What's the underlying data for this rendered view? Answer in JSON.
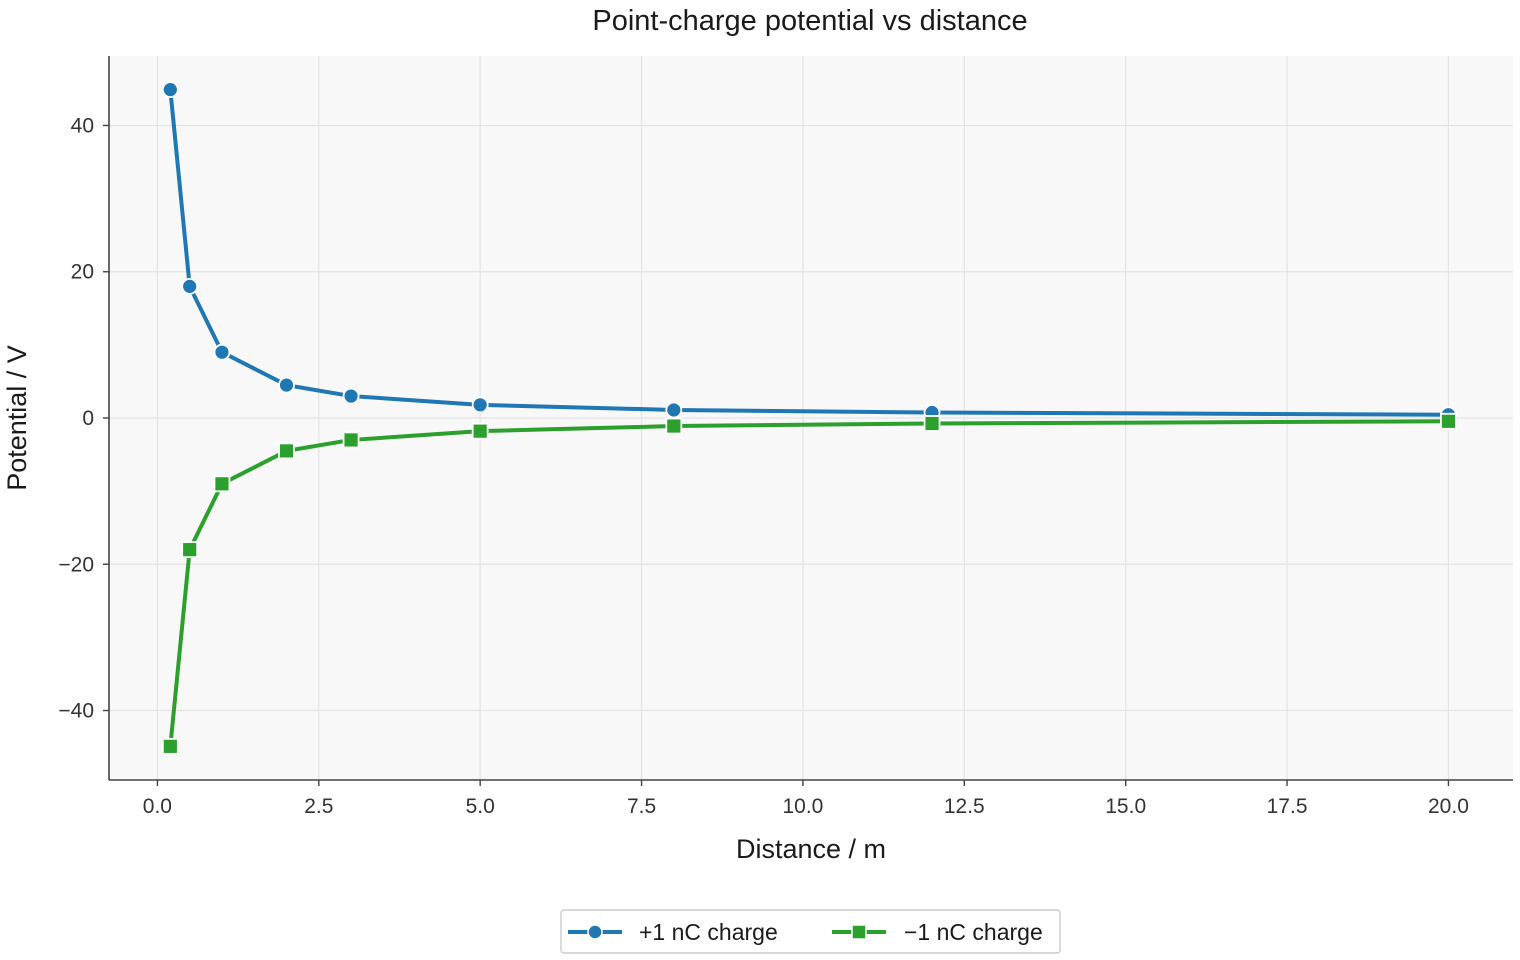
{
  "chart_data": {
    "type": "line",
    "title": "Point-charge potential vs distance",
    "xlabel": "Distance / m",
    "ylabel": "Potential / V",
    "xlim": [
      -0.75,
      21.0
    ],
    "ylim": [
      -49.5,
      49.5
    ],
    "x_ticks": [
      0.0,
      2.5,
      5.0,
      7.5,
      10.0,
      12.5,
      15.0,
      17.5,
      20.0
    ],
    "x_tick_labels": [
      "0.0",
      "2.5",
      "5.0",
      "7.5",
      "10.0",
      "12.5",
      "15.0",
      "17.5",
      "20.0"
    ],
    "y_ticks": [
      -40,
      -20,
      0,
      20,
      40
    ],
    "y_tick_labels": [
      "−40",
      "−20",
      "0",
      "20",
      "40"
    ],
    "grid": true,
    "legend_position": "bottom-center",
    "x": [
      0.2,
      0.5,
      1.0,
      2.0,
      3.0,
      5.0,
      8.0,
      12.0,
      20.0
    ],
    "series": [
      {
        "name": "+1 nC charge",
        "color": "#1f77b4",
        "marker": "circle",
        "values": [
          44.9,
          18.0,
          9.0,
          4.5,
          3.0,
          1.8,
          1.1,
          0.75,
          0.45
        ]
      },
      {
        "name": "−1 nC charge",
        "color": "#2ca02c",
        "marker": "square",
        "values": [
          -44.9,
          -18.0,
          -9.0,
          -4.5,
          -3.0,
          -1.8,
          -1.1,
          -0.75,
          -0.45
        ]
      }
    ],
    "plot_background": "#f8f8f8"
  }
}
